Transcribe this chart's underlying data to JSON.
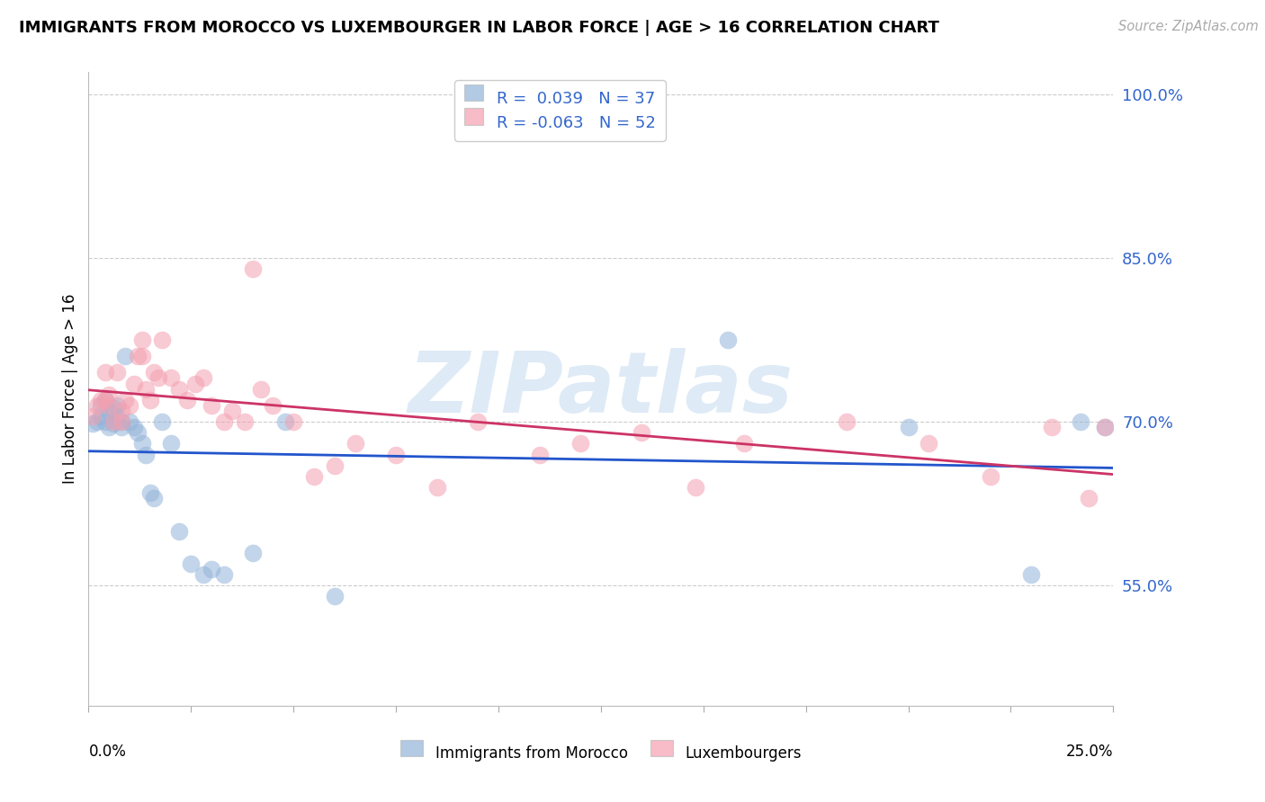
{
  "title": "IMMIGRANTS FROM MOROCCO VS LUXEMBOURGER IN LABOR FORCE | AGE > 16 CORRELATION CHART",
  "source": "Source: ZipAtlas.com",
  "ylabel": "In Labor Force | Age > 16",
  "xlim": [
    0.0,
    0.25
  ],
  "ylim": [
    0.44,
    1.02
  ],
  "yticks": [
    0.55,
    0.7,
    0.85,
    1.0
  ],
  "ytick_labels": [
    "55.0%",
    "70.0%",
    "85.0%",
    "100.0%"
  ],
  "xticks": [
    0.0,
    0.025,
    0.05,
    0.075,
    0.1,
    0.125,
    0.15,
    0.175,
    0.2,
    0.225,
    0.25
  ],
  "blue_color": "#92b4d9",
  "pink_color": "#f4a0b0",
  "blue_line_color": "#2255cc",
  "pink_line_color": "#cc3366",
  "text_blue": "#3366cc",
  "bg_color": "#ffffff",
  "grid_color": "#cccccc",
  "watermark": "ZIPatlas",
  "blue_x": [
    0.001,
    0.002,
    0.003,
    0.003,
    0.004,
    0.004,
    0.005,
    0.005,
    0.006,
    0.006,
    0.007,
    0.007,
    0.008,
    0.008,
    0.009,
    0.01,
    0.011,
    0.012,
    0.013,
    0.014,
    0.015,
    0.016,
    0.018,
    0.02,
    0.022,
    0.025,
    0.028,
    0.03,
    0.033,
    0.04,
    0.048,
    0.06,
    0.156,
    0.2,
    0.23,
    0.242,
    0.248
  ],
  "blue_y": [
    0.698,
    0.7,
    0.715,
    0.705,
    0.7,
    0.72,
    0.695,
    0.71,
    0.698,
    0.712,
    0.705,
    0.715,
    0.695,
    0.7,
    0.76,
    0.7,
    0.695,
    0.69,
    0.68,
    0.67,
    0.635,
    0.63,
    0.7,
    0.68,
    0.6,
    0.57,
    0.56,
    0.565,
    0.56,
    0.58,
    0.7,
    0.54,
    0.775,
    0.695,
    0.56,
    0.7,
    0.695
  ],
  "pink_x": [
    0.001,
    0.002,
    0.003,
    0.004,
    0.004,
    0.005,
    0.005,
    0.006,
    0.007,
    0.008,
    0.008,
    0.009,
    0.01,
    0.011,
    0.012,
    0.013,
    0.013,
    0.014,
    0.015,
    0.016,
    0.017,
    0.018,
    0.02,
    0.022,
    0.024,
    0.026,
    0.028,
    0.03,
    0.033,
    0.035,
    0.038,
    0.04,
    0.042,
    0.045,
    0.05,
    0.055,
    0.06,
    0.065,
    0.075,
    0.085,
    0.095,
    0.11,
    0.12,
    0.135,
    0.148,
    0.16,
    0.185,
    0.205,
    0.22,
    0.235,
    0.244,
    0.248
  ],
  "pink_y": [
    0.705,
    0.715,
    0.72,
    0.745,
    0.72,
    0.725,
    0.715,
    0.7,
    0.745,
    0.7,
    0.71,
    0.72,
    0.715,
    0.735,
    0.76,
    0.76,
    0.775,
    0.73,
    0.72,
    0.745,
    0.74,
    0.775,
    0.74,
    0.73,
    0.72,
    0.735,
    0.74,
    0.715,
    0.7,
    0.71,
    0.7,
    0.84,
    0.73,
    0.715,
    0.7,
    0.65,
    0.66,
    0.68,
    0.67,
    0.64,
    0.7,
    0.67,
    0.68,
    0.69,
    0.64,
    0.68,
    0.7,
    0.68,
    0.65,
    0.695,
    0.63,
    0.695
  ]
}
